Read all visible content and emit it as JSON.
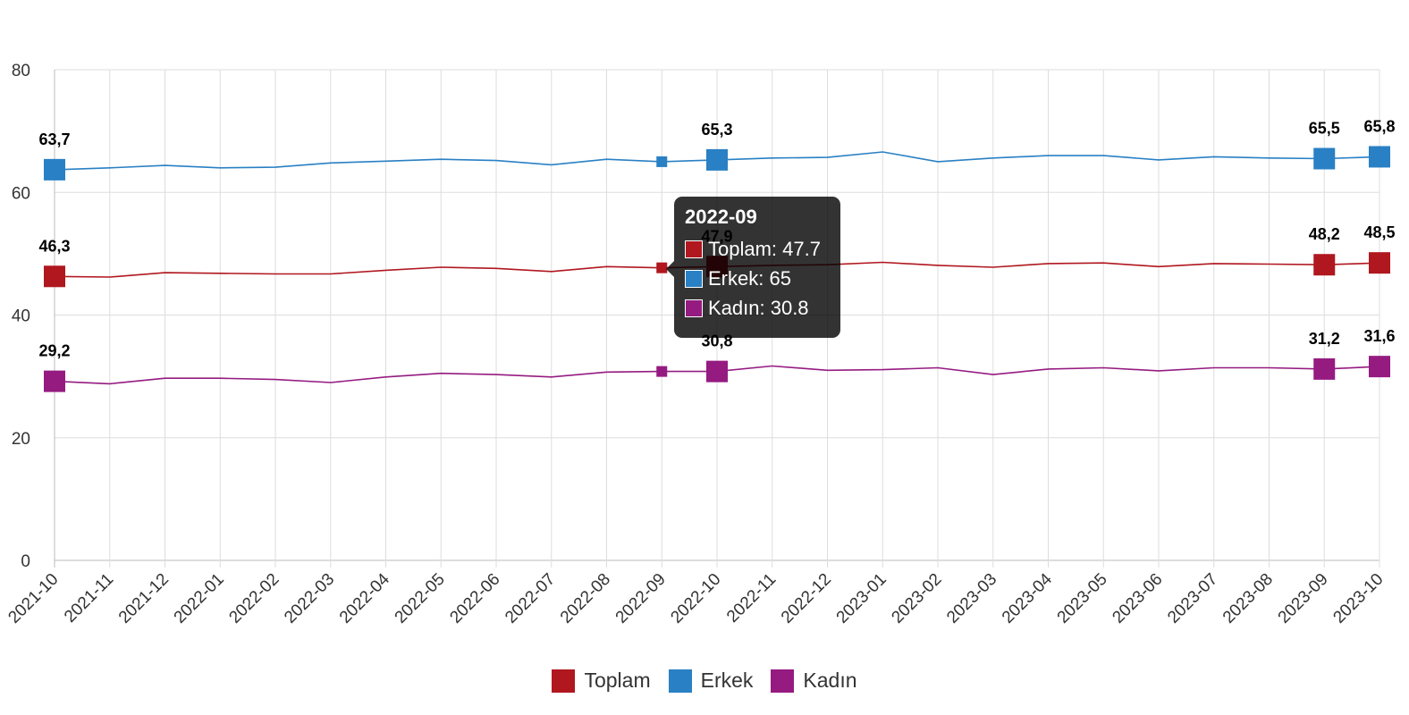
{
  "chart_data": {
    "type": "line",
    "categories": [
      "2021-10",
      "2021-11",
      "2021-12",
      "2022-01",
      "2022-02",
      "2022-03",
      "2022-04",
      "2022-05",
      "2022-06",
      "2022-07",
      "2022-08",
      "2022-09",
      "2022-10",
      "2022-11",
      "2022-12",
      "2023-01",
      "2023-02",
      "2023-03",
      "2023-04",
      "2023-05",
      "2023-06",
      "2023-07",
      "2023-08",
      "2023-09",
      "2023-10"
    ],
    "ylim": [
      0,
      80
    ],
    "yticks": [
      "0",
      "20",
      "40",
      "60",
      "80"
    ],
    "grid": true,
    "legend_position": "bottom-center",
    "series": [
      {
        "name": "Toplam",
        "color": "#b0171f",
        "values": [
          46.3,
          46.2,
          46.9,
          46.8,
          46.7,
          46.7,
          47.3,
          47.8,
          47.6,
          47.1,
          47.9,
          47.7,
          47.9,
          48.1,
          48.2,
          48.6,
          48.1,
          47.8,
          48.4,
          48.5,
          47.9,
          48.4,
          48.3,
          48.2,
          48.5
        ],
        "labels": [
          {
            "index": 0,
            "text": "46,3"
          },
          {
            "index": 12,
            "text": "47,9"
          },
          {
            "index": 23,
            "text": "48,2"
          },
          {
            "index": 24,
            "text": "48,5"
          }
        ]
      },
      {
        "name": "Erkek",
        "color": "#2980c4",
        "values": [
          63.7,
          64.0,
          64.4,
          64.0,
          64.1,
          64.8,
          65.1,
          65.4,
          65.2,
          64.5,
          65.4,
          65.0,
          65.3,
          65.6,
          65.7,
          66.6,
          65.0,
          65.6,
          66.0,
          66.0,
          65.3,
          65.8,
          65.6,
          65.5,
          65.8
        ],
        "labels": [
          {
            "index": 0,
            "text": "63,7"
          },
          {
            "index": 12,
            "text": "65,3"
          },
          {
            "index": 23,
            "text": "65,5"
          },
          {
            "index": 24,
            "text": "65,8"
          }
        ]
      },
      {
        "name": "Kadın",
        "color": "#951b81",
        "values": [
          29.2,
          28.8,
          29.7,
          29.7,
          29.5,
          29.0,
          29.9,
          30.5,
          30.3,
          29.9,
          30.7,
          30.8,
          30.8,
          31.7,
          31.0,
          31.1,
          31.4,
          30.3,
          31.2,
          31.4,
          30.9,
          31.4,
          31.4,
          31.2,
          31.6
        ],
        "labels": [
          {
            "index": 0,
            "text": "29,2"
          },
          {
            "index": 12,
            "text": "30,8"
          },
          {
            "index": 23,
            "text": "31,2"
          },
          {
            "index": 24,
            "text": "31,6"
          }
        ]
      }
    ]
  },
  "tooltip": {
    "title": "2022-09",
    "active_index": 11,
    "rows": [
      {
        "text": "Toplam: 47.7",
        "color": "#b0171f"
      },
      {
        "text": "Erkek: 65",
        "color": "#2980c4"
      },
      {
        "text": "Kadın: 30.8",
        "color": "#951b81"
      }
    ]
  },
  "legend": {
    "items": [
      {
        "label": "Toplam",
        "color": "#b0171f"
      },
      {
        "label": "Erkek",
        "color": "#2980c4"
      },
      {
        "label": "Kadın",
        "color": "#951b81"
      }
    ]
  }
}
